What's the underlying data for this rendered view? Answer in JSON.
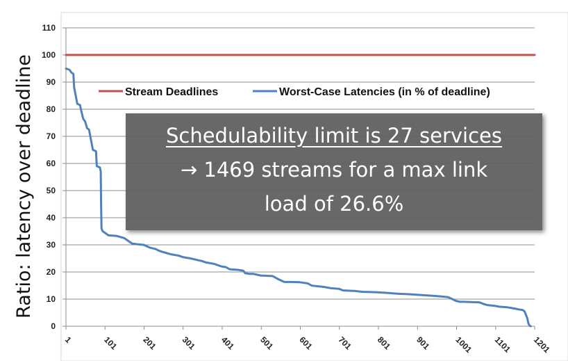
{
  "chart_data": {
    "type": "line",
    "ylabel": "Ratio: latency over deadline",
    "ylim": [
      0,
      110
    ],
    "xlim": [
      1,
      1201
    ],
    "y_ticks": [
      0,
      10,
      20,
      30,
      40,
      50,
      60,
      70,
      80,
      90,
      100,
      110
    ],
    "x_ticks": [
      "1",
      "101",
      "201",
      "301",
      "401",
      "501",
      "601",
      "701",
      "801",
      "901",
      "1001",
      "1101",
      "1201"
    ],
    "grid": "horizontal",
    "legend": "top-center",
    "series": [
      {
        "name": "Stream Deadlines",
        "color": "#c0504d",
        "x": [
          1,
          1201
        ],
        "y": [
          100,
          100
        ]
      },
      {
        "name": "Worst-Case Latencies (in % of deadline)",
        "color": "#4f81bd",
        "x": [
          1,
          10,
          15,
          20,
          22,
          30,
          37,
          40,
          45,
          50,
          55,
          60,
          70,
          78,
          80,
          88,
          90,
          91,
          92,
          95,
          100,
          110,
          130,
          150,
          165,
          170,
          185,
          200,
          215,
          230,
          240,
          250,
          270,
          290,
          300,
          320,
          340,
          350,
          360,
          380,
          400,
          410,
          420,
          440,
          455,
          460,
          470,
          480,
          500,
          515,
          530,
          545,
          560,
          580,
          600,
          620,
          630,
          640,
          660,
          680,
          700,
          710,
          740,
          760,
          800,
          830,
          850,
          880,
          910,
          940,
          960,
          980,
          990,
          1000,
          1010,
          1020,
          1060,
          1070,
          1080,
          1100,
          1110,
          1130,
          1150,
          1160,
          1170,
          1175,
          1182,
          1185,
          1188,
          1191
        ],
        "y": [
          95,
          94.5,
          93.5,
          93,
          88,
          82,
          81.5,
          79.5,
          76.5,
          75.5,
          73,
          72.5,
          65,
          64.5,
          59,
          58.5,
          57,
          45,
          36,
          35,
          34.5,
          33.5,
          33.3,
          32.5,
          31,
          30.5,
          30.2,
          30,
          29,
          28.5,
          27.8,
          27.3,
          26.5,
          26,
          25.5,
          25,
          24.3,
          24,
          23.5,
          23,
          22,
          21.8,
          21,
          20.8,
          20.5,
          19.5,
          19.3,
          19.3,
          18.7,
          18.6,
          18.5,
          17.3,
          16.3,
          16.3,
          16.2,
          15.8,
          15,
          14.8,
          14.5,
          14,
          13.8,
          13.2,
          13,
          12.7,
          12.5,
          12.2,
          12,
          11.8,
          11.5,
          11.2,
          11,
          10.7,
          10,
          9.3,
          9,
          9,
          8.8,
          8.2,
          7.8,
          7.5,
          7.2,
          7,
          6.5,
          6.2,
          6,
          5.5,
          3,
          1,
          0.2,
          0
        ]
      }
    ]
  },
  "annotation": {
    "line1": "Schedulability limit is 27 services",
    "line2": "→ 1469 streams for a max link",
    "line3": "load of 26.6%"
  }
}
